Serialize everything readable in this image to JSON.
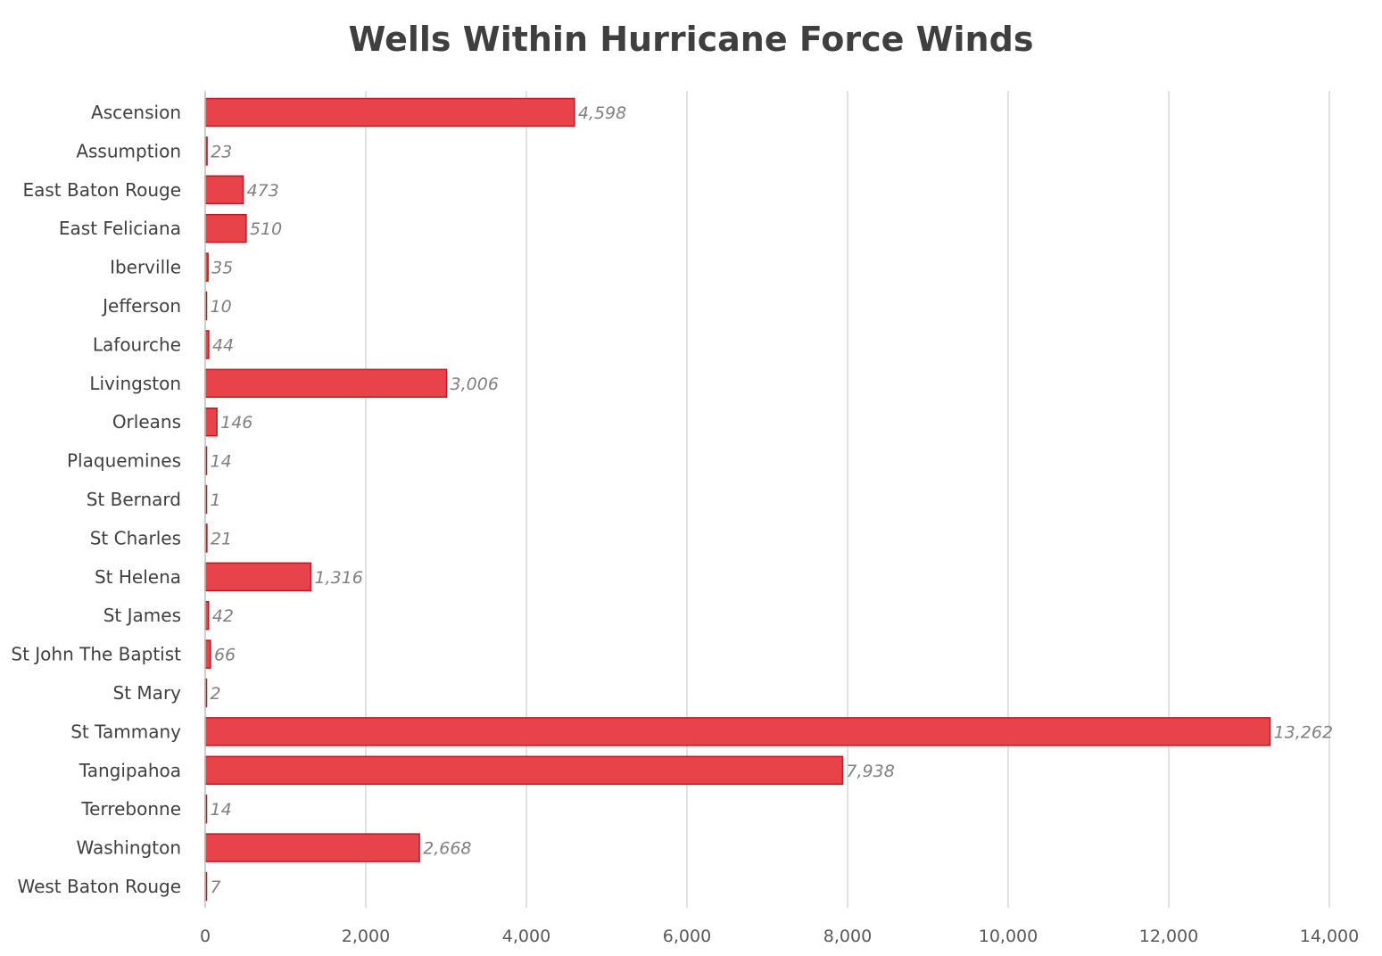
{
  "chart_data": {
    "type": "bar",
    "orientation": "horizontal",
    "title": "Wells Within Hurricane Force Winds",
    "xlabel": "",
    "ylabel": "",
    "xlim": [
      0,
      14000
    ],
    "x_ticks": [
      0,
      2000,
      4000,
      6000,
      8000,
      10000,
      12000,
      14000
    ],
    "x_tick_labels": [
      "0",
      "2,000",
      "4,000",
      "6,000",
      "8,000",
      "10,000",
      "12,000",
      "14,000"
    ],
    "grid": true,
    "legend": "none",
    "bar_color": "#e8434a",
    "bar_edge_color": "#c8141c",
    "categories": [
      "Ascension",
      "Assumption",
      "East Baton Rouge",
      "East Feliciana",
      "Iberville",
      "Jefferson",
      "Lafourche",
      "Livingston",
      "Orleans",
      "Plaquemines",
      "St Bernard",
      "St Charles",
      "St Helena",
      "St James",
      "St John The Baptist",
      "St Mary",
      "St Tammany",
      "Tangipahoa",
      "Terrebonne",
      "Washington",
      "West Baton Rouge"
    ],
    "values": [
      4598,
      23,
      473,
      510,
      35,
      10,
      44,
      3006,
      146,
      14,
      1,
      21,
      1316,
      42,
      66,
      2,
      13262,
      7938,
      14,
      2668,
      7
    ],
    "data_labels": [
      "4,598",
      "23",
      "473",
      "510",
      "35",
      "10",
      "44",
      "3,006",
      "146",
      "14",
      "1",
      "21",
      "1,316",
      "42",
      "66",
      "2",
      "13,262",
      "7,938",
      "14",
      "2,668",
      "7"
    ]
  }
}
